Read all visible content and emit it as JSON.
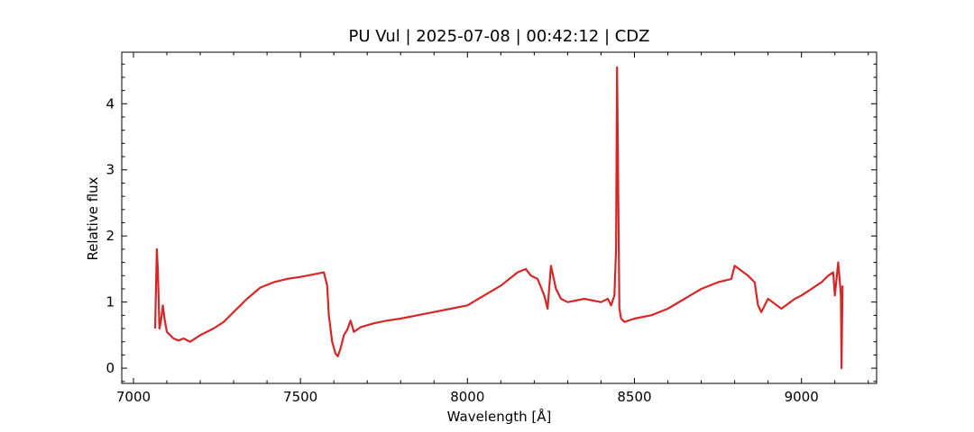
{
  "chart_data": {
    "type": "line",
    "title": "PU Vul | 2025-07-08 | 00:42:12 | CDZ",
    "xlabel": "Wavelength [Å]",
    "ylabel": "Relative flux",
    "xlim": [
      6965,
      9225
    ],
    "ylim": [
      -0.23,
      4.78
    ],
    "xticks": [
      7000,
      7500,
      8000,
      8500,
      9000
    ],
    "yticks": [
      0,
      1,
      2,
      3,
      4
    ],
    "grid": false,
    "color": "#d62728",
    "series": [
      {
        "x": [
          7065,
          7070,
          7073,
          7078,
          7082,
          7088,
          7093,
          7100,
          7110,
          7120,
          7135,
          7150,
          7170,
          7200,
          7240,
          7270,
          7300,
          7340,
          7380,
          7420,
          7460,
          7500,
          7540,
          7570,
          7580,
          7585,
          7595,
          7605,
          7612,
          7620,
          7630,
          7640,
          7650,
          7660,
          7680,
          7720,
          7760,
          7800,
          7850,
          7900,
          7950,
          8000,
          8050,
          8100,
          8150,
          8175,
          8190,
          8210,
          8230,
          8240,
          8250,
          8265,
          8280,
          8300,
          8350,
          8400,
          8420,
          8430,
          8440,
          8445,
          8448,
          8450,
          8452,
          8455,
          8460,
          8470,
          8500,
          8550,
          8600,
          8650,
          8700,
          8750,
          8790,
          8800,
          8840,
          8860,
          8870,
          8880,
          8900,
          8940,
          8980,
          9000,
          9030,
          9060,
          9080,
          9095,
          9100,
          9110,
          9115,
          9118,
          9120,
          9123
        ],
        "y": [
          0.6,
          1.8,
          1.5,
          0.6,
          0.7,
          0.95,
          0.75,
          0.55,
          0.5,
          0.45,
          0.42,
          0.45,
          0.4,
          0.5,
          0.6,
          0.7,
          0.85,
          1.05,
          1.22,
          1.3,
          1.35,
          1.38,
          1.42,
          1.45,
          1.25,
          0.8,
          0.4,
          0.22,
          0.18,
          0.3,
          0.5,
          0.58,
          0.72,
          0.55,
          0.62,
          0.68,
          0.72,
          0.75,
          0.8,
          0.85,
          0.9,
          0.95,
          1.1,
          1.25,
          1.45,
          1.5,
          1.4,
          1.35,
          1.1,
          0.9,
          1.55,
          1.2,
          1.05,
          1.0,
          1.05,
          1.0,
          1.05,
          0.95,
          1.1,
          1.8,
          4.55,
          3.5,
          2.4,
          0.9,
          0.75,
          0.7,
          0.75,
          0.8,
          0.9,
          1.05,
          1.2,
          1.3,
          1.35,
          1.55,
          1.4,
          1.3,
          0.95,
          0.85,
          1.05,
          0.9,
          1.05,
          1.1,
          1.2,
          1.3,
          1.4,
          1.45,
          1.1,
          1.6,
          1.3,
          1.1,
          0.0,
          1.25
        ]
      }
    ]
  }
}
